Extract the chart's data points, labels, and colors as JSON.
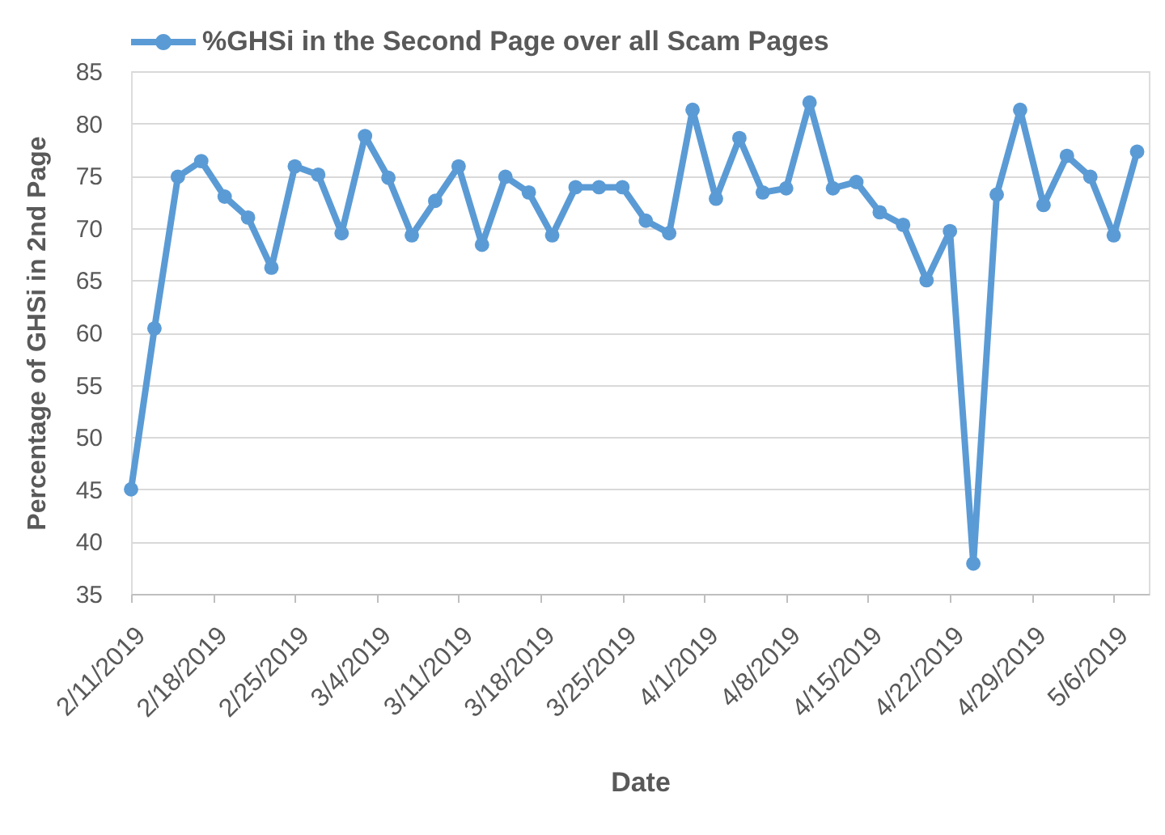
{
  "chart_data": {
    "type": "line",
    "xlabel": "Date",
    "ylabel": "Percentage of GHSi in 2nd Page",
    "legend": "top",
    "grid": "y",
    "marker": "circle",
    "x": [
      "2019-02-11",
      "2019-02-13",
      "2019-02-15",
      "2019-02-17",
      "2019-02-19",
      "2019-02-21",
      "2019-02-23",
      "2019-02-25",
      "2019-02-27",
      "2019-03-01",
      "2019-03-03",
      "2019-03-05",
      "2019-03-07",
      "2019-03-09",
      "2019-03-11",
      "2019-03-13",
      "2019-03-15",
      "2019-03-17",
      "2019-03-19",
      "2019-03-21",
      "2019-03-23",
      "2019-03-25",
      "2019-03-27",
      "2019-03-29",
      "2019-03-31",
      "2019-04-02",
      "2019-04-04",
      "2019-04-06",
      "2019-04-08",
      "2019-04-10",
      "2019-04-12",
      "2019-04-14",
      "2019-04-16",
      "2019-04-18",
      "2019-04-20",
      "2019-04-22",
      "2019-04-24",
      "2019-04-26",
      "2019-04-28",
      "2019-04-30",
      "2019-05-02",
      "2019-05-04",
      "2019-05-06",
      "2019-05-08"
    ],
    "series": [
      {
        "name": "%GHSi in the Second Page over all Scam Pages",
        "color": "#5b9bd5",
        "values": [
          45.0,
          60.4,
          74.9,
          76.4,
          73.0,
          71.0,
          66.2,
          75.9,
          75.1,
          69.5,
          78.8,
          74.8,
          69.3,
          72.6,
          75.9,
          68.4,
          74.9,
          73.4,
          69.3,
          73.9,
          73.9,
          73.9,
          70.7,
          69.5,
          81.3,
          72.8,
          78.6,
          73.4,
          73.8,
          82.0,
          73.8,
          74.4,
          71.5,
          70.3,
          65.0,
          69.7,
          37.9,
          73.2,
          81.3,
          72.2,
          76.9,
          74.9,
          69.3,
          77.3
        ]
      }
    ],
    "xlim": [
      "2019-02-11",
      "2019-05-09"
    ],
    "xticks": [
      {
        "value": "2019-02-11",
        "label": "2/11/2019"
      },
      {
        "value": "2019-02-18",
        "label": "2/18/2019"
      },
      {
        "value": "2019-02-25",
        "label": "2/25/2019"
      },
      {
        "value": "2019-03-04",
        "label": "3/4/2019"
      },
      {
        "value": "2019-03-11",
        "label": "3/11/2019"
      },
      {
        "value": "2019-03-18",
        "label": "3/18/2019"
      },
      {
        "value": "2019-03-25",
        "label": "3/25/2019"
      },
      {
        "value": "2019-04-01",
        "label": "4/1/2019"
      },
      {
        "value": "2019-04-08",
        "label": "4/8/2019"
      },
      {
        "value": "2019-04-15",
        "label": "4/15/2019"
      },
      {
        "value": "2019-04-22",
        "label": "4/22/2019"
      },
      {
        "value": "2019-04-29",
        "label": "4/29/2019"
      },
      {
        "value": "2019-05-06",
        "label": "5/6/2019"
      }
    ],
    "ylim": [
      35,
      85
    ],
    "yticks": [
      35,
      40,
      45,
      50,
      55,
      60,
      65,
      70,
      75,
      80,
      85
    ]
  }
}
